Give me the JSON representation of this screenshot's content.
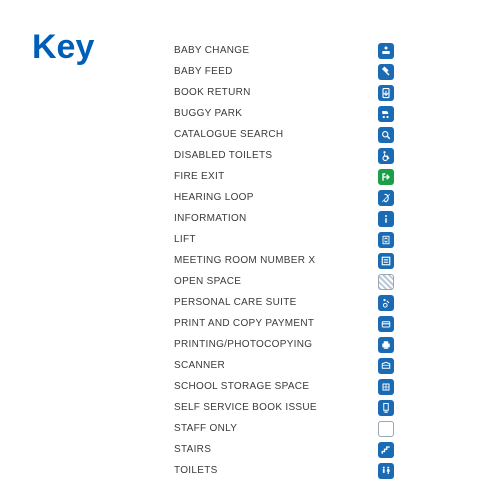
{
  "title": "Key",
  "colors": {
    "brand_blue": "#005eb8",
    "icon_blue": "#1a6bb3",
    "icon_green": "#1a9e4a",
    "icon_grey_border": "#9aa6b2",
    "label_color": "#3a3a3a",
    "white": "#ffffff"
  },
  "items": [
    {
      "label": "BABY CHANGE",
      "icon": "baby-change",
      "bg": "#1a6bb3"
    },
    {
      "label": "BABY FEED",
      "icon": "baby-feed",
      "bg": "#1a6bb3"
    },
    {
      "label": "BOOK RETURN",
      "icon": "book-return",
      "bg": "#1a6bb3"
    },
    {
      "label": "BUGGY PARK",
      "icon": "buggy",
      "bg": "#1a6bb3"
    },
    {
      "label": "CATALOGUE SEARCH",
      "icon": "search",
      "bg": "#1a6bb3"
    },
    {
      "label": "DISABLED TOILETS",
      "icon": "wheelchair",
      "bg": "#1a6bb3"
    },
    {
      "label": "FIRE EXIT",
      "icon": "exit",
      "bg": "#1a9e4a"
    },
    {
      "label": "HEARING LOOP",
      "icon": "ear",
      "bg": "#1a6bb3"
    },
    {
      "label": "INFORMATION",
      "icon": "info",
      "bg": "#1a6bb3"
    },
    {
      "label": "LIFT",
      "icon": "lift",
      "bg": "#1a6bb3"
    },
    {
      "label": "MEETING ROOM NUMBER X",
      "icon": "room",
      "bg": "#1a6bb3"
    },
    {
      "label": "OPEN SPACE",
      "icon": "hatched",
      "bg": "hatched"
    },
    {
      "label": "PERSONAL CARE SUITE",
      "icon": "care",
      "bg": "#1a6bb3"
    },
    {
      "label": "PRINT AND COPY PAYMENT",
      "icon": "payment",
      "bg": "#1a6bb3"
    },
    {
      "label": "PRINTING/PHOTOCOPYING",
      "icon": "printer",
      "bg": "#1a6bb3"
    },
    {
      "label": "SCANNER",
      "icon": "scanner",
      "bg": "#1a6bb3"
    },
    {
      "label": "SCHOOL STORAGE SPACE",
      "icon": "storage",
      "bg": "#1a6bb3"
    },
    {
      "label": "SELF SERVICE BOOK ISSUE",
      "icon": "self-service",
      "bg": "#1a6bb3"
    },
    {
      "label": "STAFF ONLY",
      "icon": "blank",
      "bg": "blank"
    },
    {
      "label": "STAIRS",
      "icon": "stairs",
      "bg": "#1a6bb3"
    },
    {
      "label": "TOILETS",
      "icon": "toilets",
      "bg": "#1a6bb3"
    }
  ]
}
